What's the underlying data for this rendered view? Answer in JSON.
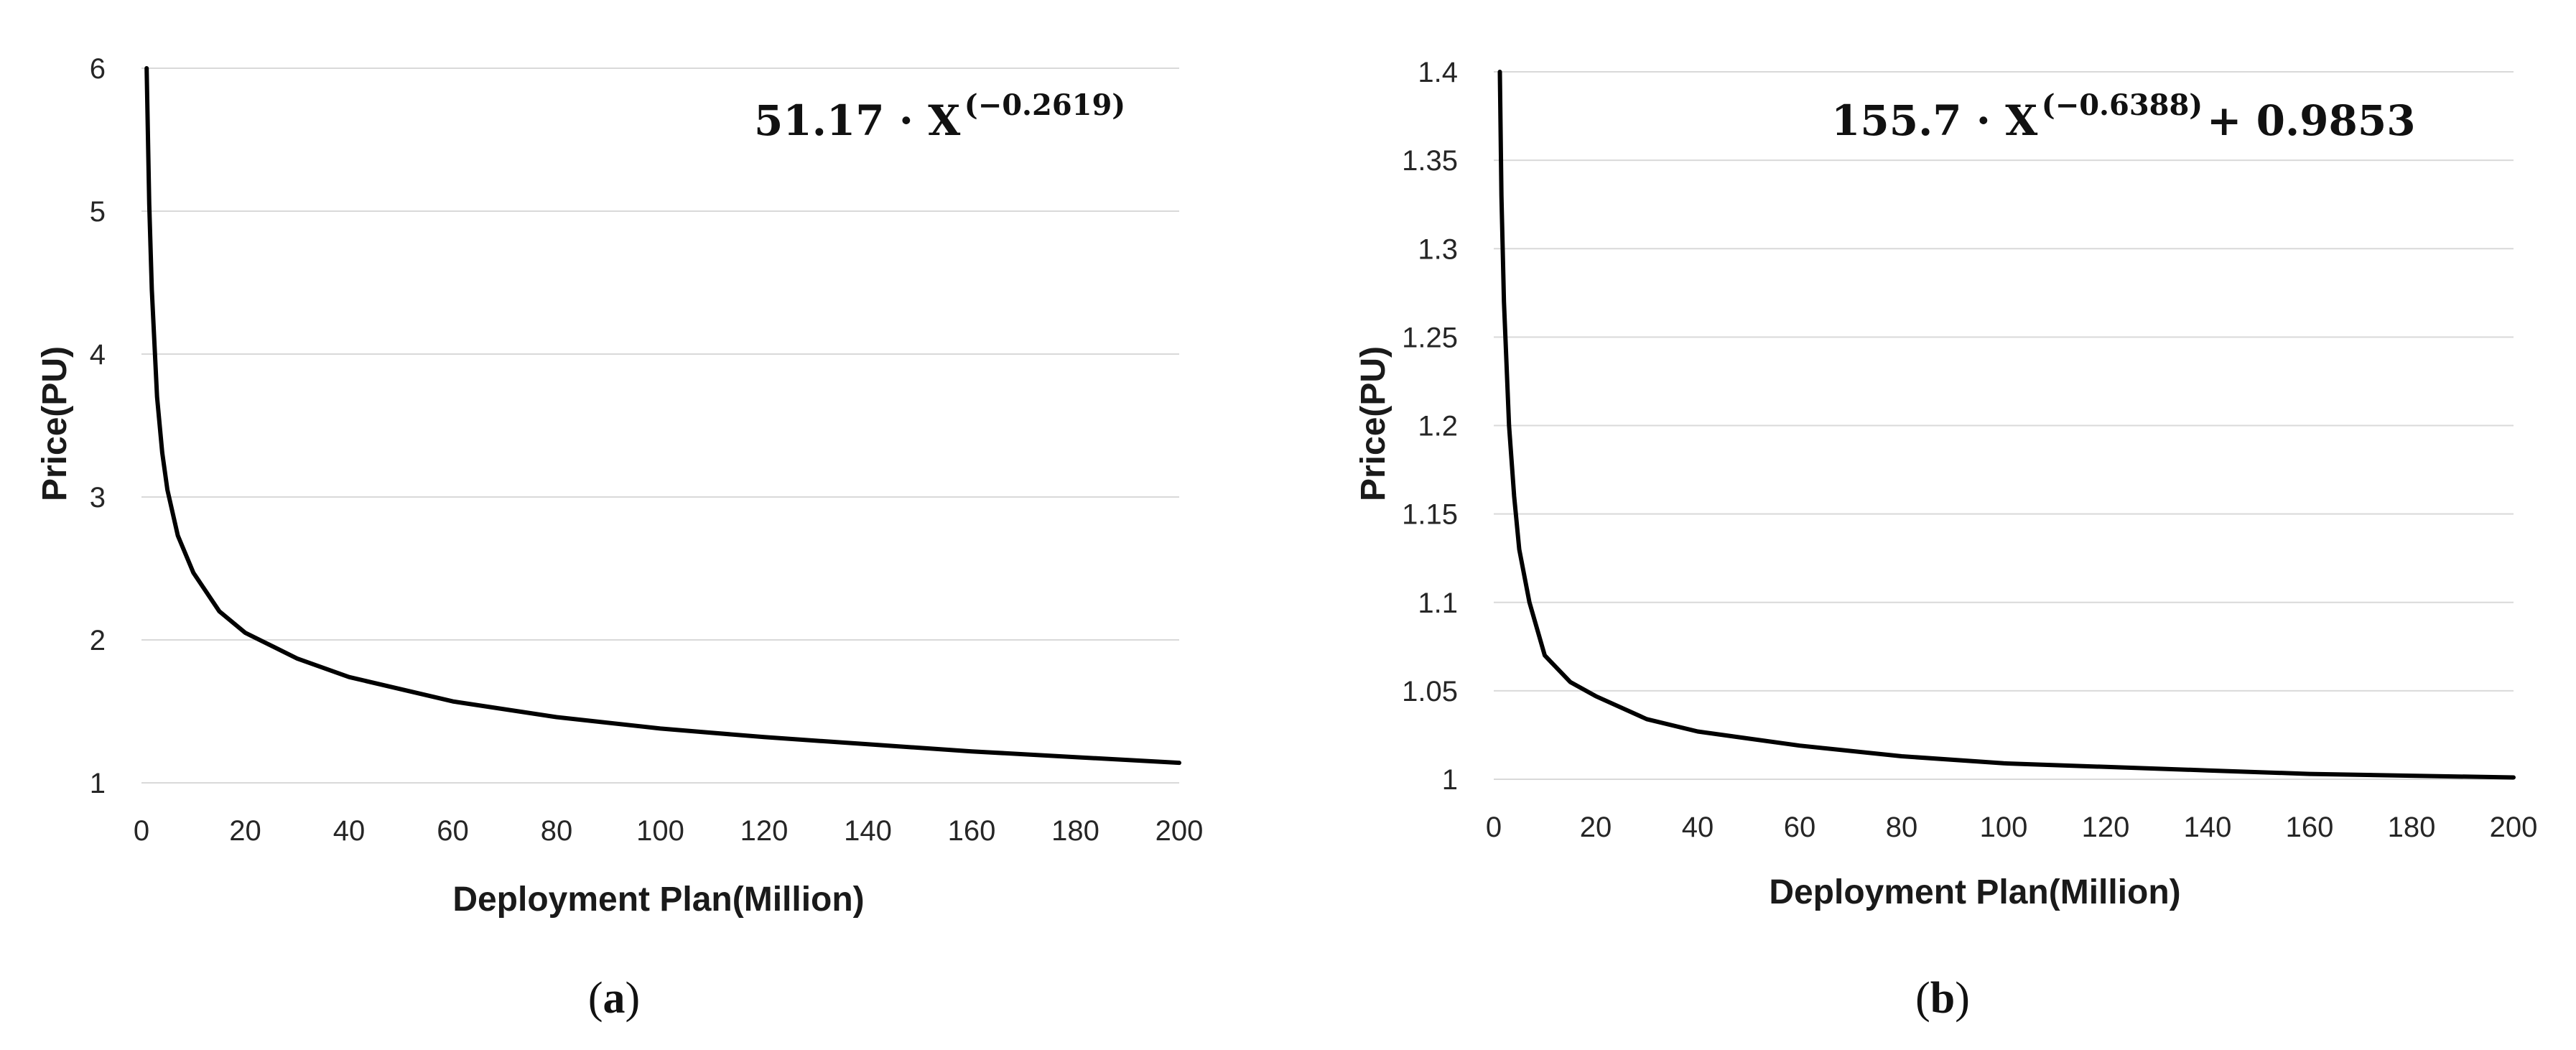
{
  "chart_data": [
    {
      "id": "a",
      "type": "line",
      "caption_letter": "a",
      "xlabel": "Deployment Plan(Million)",
      "ylabel": "Price(PU)",
      "xlim": [
        0,
        200
      ],
      "ylim": [
        1,
        6
      ],
      "x_ticks": [
        "0",
        "20",
        "40",
        "60",
        "80",
        "100",
        "120",
        "140",
        "160",
        "180",
        "200"
      ],
      "y_ticks": [
        "1",
        "2",
        "3",
        "4",
        "5",
        "6"
      ],
      "grid": true,
      "formula": {
        "main": "51.17 · X",
        "exponent": "(−0.2619)",
        "suffix": ""
      },
      "series": [
        {
          "name": "Price",
          "x": [
            1.0,
            1.5,
            2,
            3,
            4,
            5,
            7,
            10,
            15,
            20,
            30,
            40,
            60,
            80,
            100,
            120,
            140,
            160,
            180,
            200
          ],
          "y": [
            6.0,
            5.05,
            4.45,
            3.7,
            3.31,
            3.05,
            2.73,
            2.47,
            2.2,
            2.05,
            1.87,
            1.74,
            1.57,
            1.46,
            1.38,
            1.32,
            1.27,
            1.22,
            1.18,
            1.14
          ]
        }
      ]
    },
    {
      "id": "b",
      "type": "line",
      "caption_letter": "b",
      "xlabel": "Deployment Plan(Million)",
      "ylabel": "Price(PU)",
      "xlim": [
        0,
        200
      ],
      "ylim": [
        1,
        1.4
      ],
      "x_ticks": [
        "0",
        "20",
        "40",
        "60",
        "80",
        "100",
        "120",
        "140",
        "160",
        "180",
        "200"
      ],
      "y_ticks": [
        "1",
        "1.05",
        "1.1",
        "1.15",
        "1.2",
        "1.25",
        "1.3",
        "1.35",
        "1.4"
      ],
      "grid": true,
      "formula": {
        "main": "155.7 · X",
        "exponent": "(−0.6388)",
        "suffix": " + 0.9853"
      },
      "series": [
        {
          "name": "Price",
          "x": [
            1.2,
            1.5,
            2,
            3,
            4,
            5,
            7,
            10,
            15,
            20,
            30,
            40,
            60,
            80,
            100,
            120,
            140,
            160,
            180,
            200
          ],
          "y": [
            1.4,
            1.33,
            1.27,
            1.2,
            1.16,
            1.13,
            1.1,
            1.07,
            1.055,
            1.047,
            1.034,
            1.027,
            1.019,
            1.013,
            1.009,
            1.007,
            1.005,
            1.003,
            1.002,
            1.001
          ]
        }
      ]
    }
  ]
}
